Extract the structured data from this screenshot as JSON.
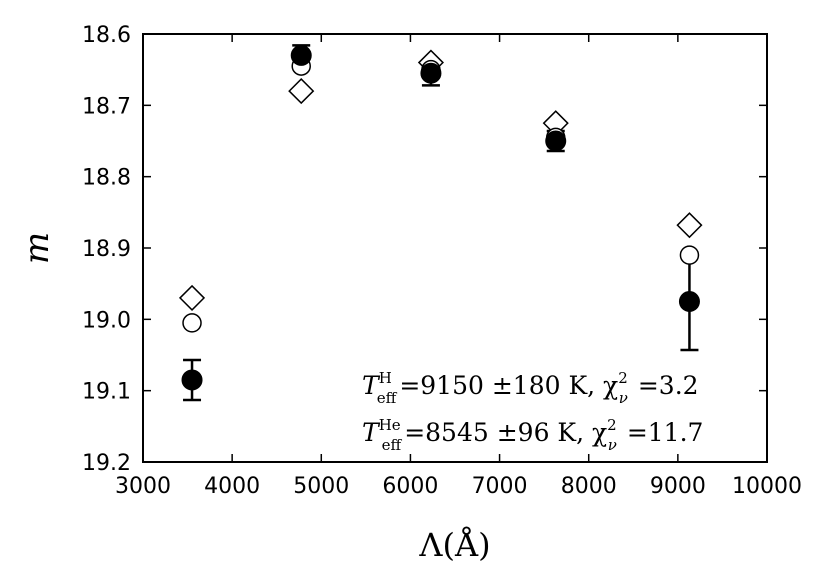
{
  "chart_data": {
    "type": "scatter",
    "title": "",
    "xlabel": "Λ(Å)",
    "ylabel": "m",
    "xlim": [
      3000,
      10000
    ],
    "ylim": [
      18.6,
      19.2
    ],
    "y_inverted": true,
    "grid": false,
    "xticks": [
      3000,
      4000,
      5000,
      6000,
      7000,
      8000,
      9000,
      10000
    ],
    "yticks": [
      18.6,
      18.7,
      18.8,
      18.9,
      19.0,
      19.1,
      19.2
    ],
    "xtick_labels": [
      "3000",
      "4000",
      "5000",
      "6000",
      "7000",
      "8000",
      "9000",
      "10000"
    ],
    "ytick_labels": [
      "18.6",
      "18.7",
      "18.8",
      "18.9",
      "19.0",
      "19.1",
      "19.2"
    ],
    "series": [
      {
        "marker": "filled-circle",
        "x": [
          3550,
          4775,
          6230,
          7630,
          9130
        ],
        "y": [
          19.085,
          18.63,
          18.655,
          18.75,
          18.975
        ],
        "yerr": [
          0.028,
          0.014,
          0.017,
          0.014,
          0.068
        ]
      },
      {
        "marker": "open-circle",
        "x": [
          3550,
          4775,
          6230,
          7630,
          9130
        ],
        "y": [
          19.005,
          18.645,
          18.65,
          18.745,
          18.91
        ]
      },
      {
        "marker": "open-diamond",
        "x": [
          3550,
          4775,
          6230,
          7630,
          9130
        ],
        "y": [
          18.97,
          18.68,
          18.64,
          18.725,
          18.868
        ]
      }
    ],
    "annotations": [
      {
        "T": "T",
        "sup": "H",
        "sub": "eff",
        "body": "=9150 ±180 K, χ",
        "chi_sup": "2",
        "chi_sub": "ν",
        "value": "=3.2"
      },
      {
        "T": "T",
        "sup": "He",
        "sub": "eff",
        "body": "=8545 ±96 K, χ",
        "chi_sup": "2",
        "chi_sub": "ν",
        "value": "=11.7"
      }
    ]
  }
}
